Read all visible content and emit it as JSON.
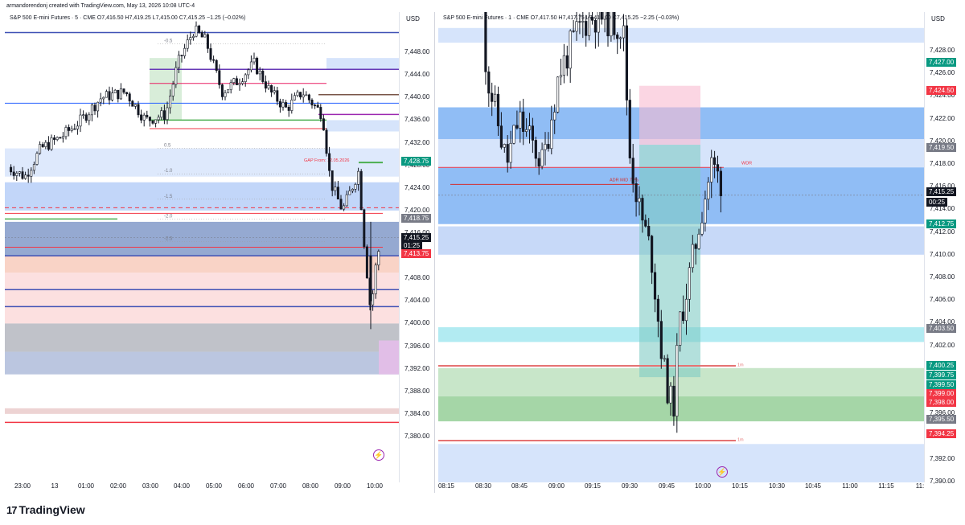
{
  "header": {
    "credit": "armandorendonj created with TradingView.com, May 13, 2026 10:08 UTC-4"
  },
  "left_chart": {
    "legend": "S&P 500 E-mini Futures · 5 · CME  O7,416.50  H7,419.25  L7,415.00  C7,415.25  −1.25 (−0.02%)",
    "currency": "USD",
    "price_ticks": [
      "7,448.00",
      "7,444.00",
      "7,440.00",
      "7,436.00",
      "7,432.00",
      "7,428.75",
      "7,424.00",
      "7,420.00",
      "7,418.75",
      "7,416.00",
      "7,415.25",
      "01:25",
      "7,413.75",
      "7,408.00",
      "7,404.00",
      "7,400.00",
      "7,396.00",
      "7,392.00",
      "7,388.00",
      "7,384.00",
      "7,380.00"
    ],
    "price_values": [
      7448,
      7444,
      7440,
      7436,
      7432,
      7428,
      7424,
      7420,
      7416,
      7412,
      7408,
      7404,
      7400,
      7396,
      7392,
      7388,
      7384,
      7380
    ],
    "price_min": 7378,
    "price_max": 7452,
    "badges": [
      {
        "text": "7,428.75",
        "price": 7428.75,
        "color": "#089981"
      },
      {
        "text": "7,418.75",
        "price": 7418.75,
        "color": "#787b86"
      },
      {
        "text": "7,415.25",
        "price": 7415.25,
        "color": "#131722"
      },
      {
        "text": "01:25",
        "price": 7413.9,
        "color": "#131722"
      },
      {
        "text": "7,413.75",
        "price": 7412.5,
        "color": "#f23645"
      }
    ],
    "time_labels": [
      "23:00",
      "13",
      "01:00",
      "02:00",
      "03:00",
      "04:00",
      "05:00",
      "06:00",
      "07:00",
      "08:00",
      "09:00",
      "10:00"
    ],
    "level_labels": [
      "-0.5",
      "0.5",
      "-1.0",
      "-1.5",
      "-2.0",
      "-2.5"
    ],
    "annotation_gap": "GAP From: 12.05.2026"
  },
  "right_chart": {
    "legend": "S&P 500 E-mini Futures · 1 · CME  O7,417.50  H7,417.75  L7,415.00  C7,415.25  −2.25 (−0.03%)",
    "currency": "USD",
    "price_labels": [
      "7,428.00",
      "7,426.00",
      "7,424.00",
      "7,422.00",
      "7,420.00",
      "7,418.00",
      "7,416.00",
      "7,414.00",
      "7,412.00",
      "7,410.00",
      "7,408.00",
      "7,406.00",
      "7,404.00",
      "7,402.00",
      "7,400.00",
      "7,398.00",
      "7,396.00",
      "7,392.00",
      "7,390.00"
    ],
    "price_values": [
      7428,
      7426,
      7424,
      7422,
      7420,
      7418,
      7416,
      7414,
      7412,
      7410,
      7408,
      7406,
      7404,
      7402,
      7400,
      7398,
      7396,
      7392,
      7390
    ],
    "price_min": 7389,
    "price_max": 7431,
    "badges": [
      {
        "text": "7,427.00",
        "price": 7427.0,
        "color": "#089981"
      },
      {
        "text": "7,424.50",
        "price": 7424.5,
        "color": "#f23645"
      },
      {
        "text": "7,419.50",
        "price": 7419.5,
        "color": "#787b86"
      },
      {
        "text": "7,415.25",
        "price": 7415.6,
        "color": "#131722"
      },
      {
        "text": "00:25",
        "price": 7414.7,
        "color": "#131722"
      },
      {
        "text": "7,412.75",
        "price": 7412.75,
        "color": "#089981"
      },
      {
        "text": "7,403.50",
        "price": 7403.5,
        "color": "#787b86"
      },
      {
        "text": "7,400.25",
        "price": 7400.25,
        "color": "#089981"
      },
      {
        "text": "7,399.75",
        "price": 7399.4,
        "color": "#089981"
      },
      {
        "text": "7,399.50",
        "price": 7398.6,
        "color": "#089981"
      },
      {
        "text": "7,399.00",
        "price": 7397.8,
        "color": "#f23645"
      },
      {
        "text": "7,398.00",
        "price": 7397.0,
        "color": "#f23645"
      },
      {
        "text": "7,395.50",
        "price": 7395.5,
        "color": "#787b86"
      },
      {
        "text": "7,394.25",
        "price": 7394.25,
        "color": "#f23645"
      }
    ],
    "time_labels": [
      "08:15",
      "08:30",
      "08:45",
      "09:00",
      "09:15",
      "09:30",
      "09:45",
      "10:00",
      "10:15",
      "10:30",
      "10:45",
      "11:00",
      "11:15",
      "11:"
    ],
    "annotation_wdr": "WDR",
    "annotation_adr": "ADR MID 79%",
    "annotation_1m_a": "1m",
    "annotation_1m_b": "1m"
  },
  "footer": {
    "brand": "TradingView",
    "logo_mark": "17"
  },
  "colors": {
    "up": "#131722",
    "accent_blue": "#2962ff",
    "red": "#f23645",
    "green": "#089981"
  }
}
